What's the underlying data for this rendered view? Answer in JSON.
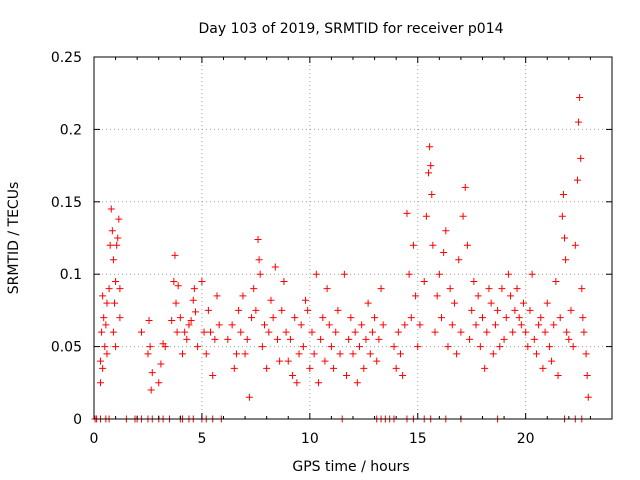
{
  "chart_data": {
    "type": "scatter",
    "title": "Day 103 of 2019, SRMTID for receiver p014",
    "xlabel": "GPS time / hours",
    "ylabel": "SRMTID / TECUs",
    "xlim": [
      0,
      24
    ],
    "ylim": [
      0,
      0.25
    ],
    "grid": true,
    "marker": "+",
    "colors": {
      "series": "#ff0000",
      "axis": "#000000",
      "grid": "#a0a0a0"
    },
    "x_ticks": [
      0,
      5,
      10,
      15,
      20
    ],
    "x_tick_labels": [
      "0",
      "5",
      "10",
      "15",
      "20"
    ],
    "y_ticks": [
      0,
      0.05,
      0.1,
      0.15,
      0.2,
      0.25
    ],
    "y_tick_labels": [
      "0",
      "0.05",
      "0.1",
      "0.15",
      "0.2",
      "0.25"
    ],
    "series": [
      {
        "name": "SRMTID",
        "points": [
          [
            0.05,
            0
          ],
          [
            0.12,
            0
          ],
          [
            0.3,
            0
          ],
          [
            0.55,
            0
          ],
          [
            0.7,
            0
          ],
          [
            1.5,
            0
          ],
          [
            1.9,
            0
          ],
          [
            2.0,
            0
          ],
          [
            2.2,
            0
          ],
          [
            2.5,
            0
          ],
          [
            2.7,
            0
          ],
          [
            3.0,
            0
          ],
          [
            3.2,
            0
          ],
          [
            3.5,
            0
          ],
          [
            4.0,
            0
          ],
          [
            4.1,
            0
          ],
          [
            4.4,
            0
          ],
          [
            4.6,
            0
          ],
          [
            5.0,
            0
          ],
          [
            5.2,
            0
          ],
          [
            5.5,
            0
          ],
          [
            5.9,
            0
          ],
          [
            11.5,
            0
          ],
          [
            13.1,
            0
          ],
          [
            13.3,
            0
          ],
          [
            13.5,
            0
          ],
          [
            13.7,
            0
          ],
          [
            13.9,
            0
          ],
          [
            14.5,
            0
          ],
          [
            14.8,
            0
          ],
          [
            15.3,
            0
          ],
          [
            15.6,
            0
          ],
          [
            16.3,
            0
          ],
          [
            17.0,
            0
          ],
          [
            18.7,
            0
          ],
          [
            21.8,
            0
          ],
          [
            22.3,
            0
          ],
          [
            22.6,
            0
          ],
          [
            0.3,
            0.025
          ],
          [
            0.3,
            0.04
          ],
          [
            0.35,
            0.06
          ],
          [
            0.4,
            0.085
          ],
          [
            0.4,
            0.035
          ],
          [
            0.45,
            0.07
          ],
          [
            0.5,
            0.05
          ],
          [
            0.55,
            0.065
          ],
          [
            0.6,
            0.08
          ],
          [
            0.6,
            0.045
          ],
          [
            0.7,
            0.09
          ],
          [
            0.75,
            0.12
          ],
          [
            0.8,
            0.145
          ],
          [
            0.85,
            0.13
          ],
          [
            0.9,
            0.11
          ],
          [
            0.9,
            0.06
          ],
          [
            0.95,
            0.08
          ],
          [
            1.0,
            0.095
          ],
          [
            1.0,
            0.05
          ],
          [
            1.05,
            0.12
          ],
          [
            1.1,
            0.125
          ],
          [
            1.15,
            0.138
          ],
          [
            1.2,
            0.09
          ],
          [
            1.2,
            0.07
          ],
          [
            2.2,
            0.06
          ],
          [
            2.5,
            0.045
          ],
          [
            2.55,
            0.068
          ],
          [
            2.6,
            0.05
          ],
          [
            2.65,
            0.02
          ],
          [
            2.7,
            0.032
          ],
          [
            3.0,
            0.025
          ],
          [
            3.1,
            0.038
          ],
          [
            3.2,
            0.052
          ],
          [
            3.3,
            0.05
          ],
          [
            3.6,
            0.068
          ],
          [
            3.7,
            0.095
          ],
          [
            3.75,
            0.113
          ],
          [
            3.8,
            0.08
          ],
          [
            3.85,
            0.06
          ],
          [
            3.9,
            0.092
          ],
          [
            4.0,
            0.07
          ],
          [
            4.1,
            0.045
          ],
          [
            4.2,
            0.06
          ],
          [
            4.3,
            0.055
          ],
          [
            4.4,
            0.065
          ],
          [
            4.5,
            0.068
          ],
          [
            4.6,
            0.082
          ],
          [
            4.65,
            0.09
          ],
          [
            4.7,
            0.074
          ],
          [
            4.8,
            0.05
          ],
          [
            5.0,
            0.095
          ],
          [
            5.1,
            0.06
          ],
          [
            5.2,
            0.045
          ],
          [
            5.3,
            0.075
          ],
          [
            5.4,
            0.06
          ],
          [
            5.5,
            0.03
          ],
          [
            5.6,
            0.055
          ],
          [
            5.7,
            0.085
          ],
          [
            5.8,
            0.065
          ],
          [
            6.2,
            0.055
          ],
          [
            6.4,
            0.065
          ],
          [
            6.5,
            0.035
          ],
          [
            6.6,
            0.045
          ],
          [
            6.7,
            0.075
          ],
          [
            6.8,
            0.06
          ],
          [
            6.9,
            0.085
          ],
          [
            7.0,
            0.045
          ],
          [
            7.1,
            0.055
          ],
          [
            7.2,
            0.015
          ],
          [
            7.3,
            0.07
          ],
          [
            7.4,
            0.09
          ],
          [
            7.5,
            0.075
          ],
          [
            7.6,
            0.124
          ],
          [
            7.65,
            0.11
          ],
          [
            7.7,
            0.1
          ],
          [
            7.8,
            0.05
          ],
          [
            7.9,
            0.065
          ],
          [
            8.0,
            0.035
          ],
          [
            8.1,
            0.06
          ],
          [
            8.2,
            0.082
          ],
          [
            8.3,
            0.07
          ],
          [
            8.4,
            0.105
          ],
          [
            8.5,
            0.055
          ],
          [
            8.6,
            0.04
          ],
          [
            8.7,
            0.075
          ],
          [
            8.8,
            0.095
          ],
          [
            8.9,
            0.06
          ],
          [
            9.0,
            0.04
          ],
          [
            9.1,
            0.055
          ],
          [
            9.2,
            0.03
          ],
          [
            9.3,
            0.07
          ],
          [
            9.4,
            0.025
          ],
          [
            9.5,
            0.045
          ],
          [
            9.6,
            0.065
          ],
          [
            9.7,
            0.05
          ],
          [
            9.8,
            0.082
          ],
          [
            9.9,
            0.075
          ],
          [
            10.0,
            0.035
          ],
          [
            10.1,
            0.06
          ],
          [
            10.2,
            0.045
          ],
          [
            10.3,
            0.1
          ],
          [
            10.4,
            0.025
          ],
          [
            10.5,
            0.055
          ],
          [
            10.6,
            0.07
          ],
          [
            10.7,
            0.04
          ],
          [
            10.8,
            0.09
          ],
          [
            10.9,
            0.065
          ],
          [
            11.0,
            0.05
          ],
          [
            11.1,
            0.035
          ],
          [
            11.2,
            0.06
          ],
          [
            11.3,
            0.075
          ],
          [
            11.4,
            0.045
          ],
          [
            11.6,
            0.1
          ],
          [
            11.7,
            0.03
          ],
          [
            11.8,
            0.055
          ],
          [
            11.9,
            0.07
          ],
          [
            12.0,
            0.045
          ],
          [
            12.1,
            0.06
          ],
          [
            12.2,
            0.025
          ],
          [
            12.3,
            0.05
          ],
          [
            12.4,
            0.065
          ],
          [
            12.5,
            0.035
          ],
          [
            12.6,
            0.055
          ],
          [
            12.7,
            0.08
          ],
          [
            12.8,
            0.045
          ],
          [
            12.9,
            0.06
          ],
          [
            13.0,
            0.07
          ],
          [
            13.1,
            0.04
          ],
          [
            13.2,
            0.055
          ],
          [
            13.3,
            0.09
          ],
          [
            13.4,
            0.065
          ],
          [
            13.9,
            0.05
          ],
          [
            14.0,
            0.035
          ],
          [
            14.1,
            0.06
          ],
          [
            14.2,
            0.045
          ],
          [
            14.3,
            0.03
          ],
          [
            14.4,
            0.065
          ],
          [
            14.5,
            0.142
          ],
          [
            14.6,
            0.1
          ],
          [
            14.7,
            0.07
          ],
          [
            14.8,
            0.12
          ],
          [
            14.9,
            0.085
          ],
          [
            15.0,
            0.05
          ],
          [
            15.1,
            0.065
          ],
          [
            15.3,
            0.095
          ],
          [
            15.4,
            0.14
          ],
          [
            15.5,
            0.17
          ],
          [
            15.55,
            0.188
          ],
          [
            15.6,
            0.175
          ],
          [
            15.65,
            0.155
          ],
          [
            15.7,
            0.12
          ],
          [
            15.8,
            0.06
          ],
          [
            15.9,
            0.085
          ],
          [
            16.0,
            0.1
          ],
          [
            16.1,
            0.07
          ],
          [
            16.2,
            0.115
          ],
          [
            16.3,
            0.13
          ],
          [
            16.4,
            0.05
          ],
          [
            16.5,
            0.09
          ],
          [
            16.6,
            0.065
          ],
          [
            16.7,
            0.08
          ],
          [
            16.8,
            0.045
          ],
          [
            16.9,
            0.11
          ],
          [
            17.0,
            0.06
          ],
          [
            17.1,
            0.14
          ],
          [
            17.2,
            0.16
          ],
          [
            17.3,
            0.12
          ],
          [
            17.4,
            0.055
          ],
          [
            17.5,
            0.075
          ],
          [
            17.6,
            0.095
          ],
          [
            17.7,
            0.065
          ],
          [
            17.8,
            0.085
          ],
          [
            17.9,
            0.05
          ],
          [
            18.0,
            0.07
          ],
          [
            18.1,
            0.035
          ],
          [
            18.2,
            0.06
          ],
          [
            18.3,
            0.09
          ],
          [
            18.4,
            0.08
          ],
          [
            18.5,
            0.045
          ],
          [
            18.6,
            0.065
          ],
          [
            18.7,
            0.075
          ],
          [
            18.8,
            0.05
          ],
          [
            18.9,
            0.09
          ],
          [
            19.0,
            0.055
          ],
          [
            19.1,
            0.07
          ],
          [
            19.2,
            0.1
          ],
          [
            19.3,
            0.085
          ],
          [
            19.4,
            0.06
          ],
          [
            19.5,
            0.075
          ],
          [
            19.6,
            0.09
          ],
          [
            19.7,
            0.07
          ],
          [
            19.8,
            0.065
          ],
          [
            19.9,
            0.08
          ],
          [
            20.0,
            0.06
          ],
          [
            20.1,
            0.05
          ],
          [
            20.2,
            0.075
          ],
          [
            20.3,
            0.1
          ],
          [
            20.4,
            0.055
          ],
          [
            20.5,
            0.045
          ],
          [
            20.6,
            0.065
          ],
          [
            20.7,
            0.07
          ],
          [
            20.8,
            0.035
          ],
          [
            20.9,
            0.06
          ],
          [
            21.0,
            0.08
          ],
          [
            21.1,
            0.05
          ],
          [
            21.2,
            0.04
          ],
          [
            21.3,
            0.065
          ],
          [
            21.4,
            0.095
          ],
          [
            21.5,
            0.03
          ],
          [
            21.6,
            0.07
          ],
          [
            21.7,
            0.14
          ],
          [
            21.75,
            0.155
          ],
          [
            21.8,
            0.125
          ],
          [
            21.85,
            0.11
          ],
          [
            21.9,
            0.06
          ],
          [
            22.0,
            0.055
          ],
          [
            22.1,
            0.075
          ],
          [
            22.2,
            0.05
          ],
          [
            22.3,
            0.12
          ],
          [
            22.4,
            0.165
          ],
          [
            22.45,
            0.205
          ],
          [
            22.5,
            0.222
          ],
          [
            22.55,
            0.18
          ],
          [
            22.6,
            0.09
          ],
          [
            22.65,
            0.07
          ],
          [
            22.7,
            0.06
          ],
          [
            22.8,
            0.045
          ],
          [
            22.85,
            0.03
          ],
          [
            22.9,
            0.015
          ]
        ]
      }
    ]
  }
}
